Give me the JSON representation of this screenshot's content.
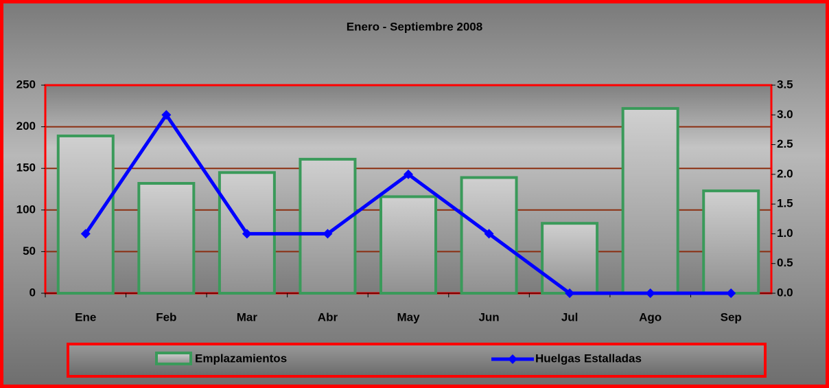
{
  "chart_data": {
    "type": "bar-line",
    "title": "Enero - Septiembre 2008",
    "categories": [
      "Ene",
      "Feb",
      "Mar",
      "Abr",
      "May",
      "Jun",
      "Jul",
      "Ago",
      "Sep"
    ],
    "series": [
      {
        "name": "Emplazamientos",
        "type": "bar",
        "color": "#3a9a5a",
        "values": [
          189,
          132,
          145,
          161,
          116,
          139,
          84,
          222,
          123
        ]
      },
      {
        "name": "Huelgas Estalladas",
        "type": "line",
        "axis": "y2",
        "color": "#0000ff",
        "values": [
          1,
          3,
          1,
          1,
          2,
          1,
          0,
          0,
          0
        ]
      }
    ],
    "ylim": [
      0,
      250
    ],
    "yticks": [
      0,
      50,
      100,
      150,
      200,
      250
    ],
    "y2lim": [
      0,
      3.5
    ],
    "y2ticks": [
      {
        "value": 0,
        "label": "0.0"
      },
      0.5,
      {
        "value": 1,
        "label": "1.0"
      },
      1.5,
      {
        "value": 2,
        "label": "2.0"
      },
      2.5,
      {
        "value": 3,
        "label": "3.0"
      },
      3.5
    ],
    "grid": true,
    "legend": "bottom"
  }
}
